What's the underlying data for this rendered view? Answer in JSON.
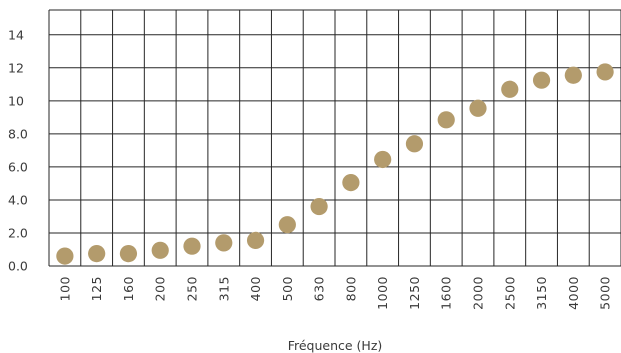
{
  "chart_data": {
    "type": "scatter",
    "title": "",
    "xlabel": "Fréquence (Hz)",
    "ylabel": "",
    "categories": [
      "100",
      "125",
      "160",
      "200",
      "250",
      "315",
      "400",
      "500",
      "630",
      "800",
      "1000",
      "1250",
      "1600",
      "2000",
      "2500",
      "3150",
      "4000",
      "5000"
    ],
    "values": [
      0.6,
      0.75,
      0.75,
      0.95,
      1.2,
      1.4,
      1.55,
      2.5,
      3.6,
      5.05,
      6.45,
      7.4,
      8.85,
      9.55,
      10.7,
      11.25,
      11.55,
      11.75
    ],
    "yticks": [
      "0.0",
      "2.0",
      "4.0",
      "6.0",
      "8.0",
      "10",
      "12",
      "14"
    ],
    "ylim": [
      0,
      15.5
    ],
    "grid": true,
    "colors": {
      "marker": "#b39b6c",
      "grid": "#262626",
      "text": "#3a3a3a"
    }
  }
}
